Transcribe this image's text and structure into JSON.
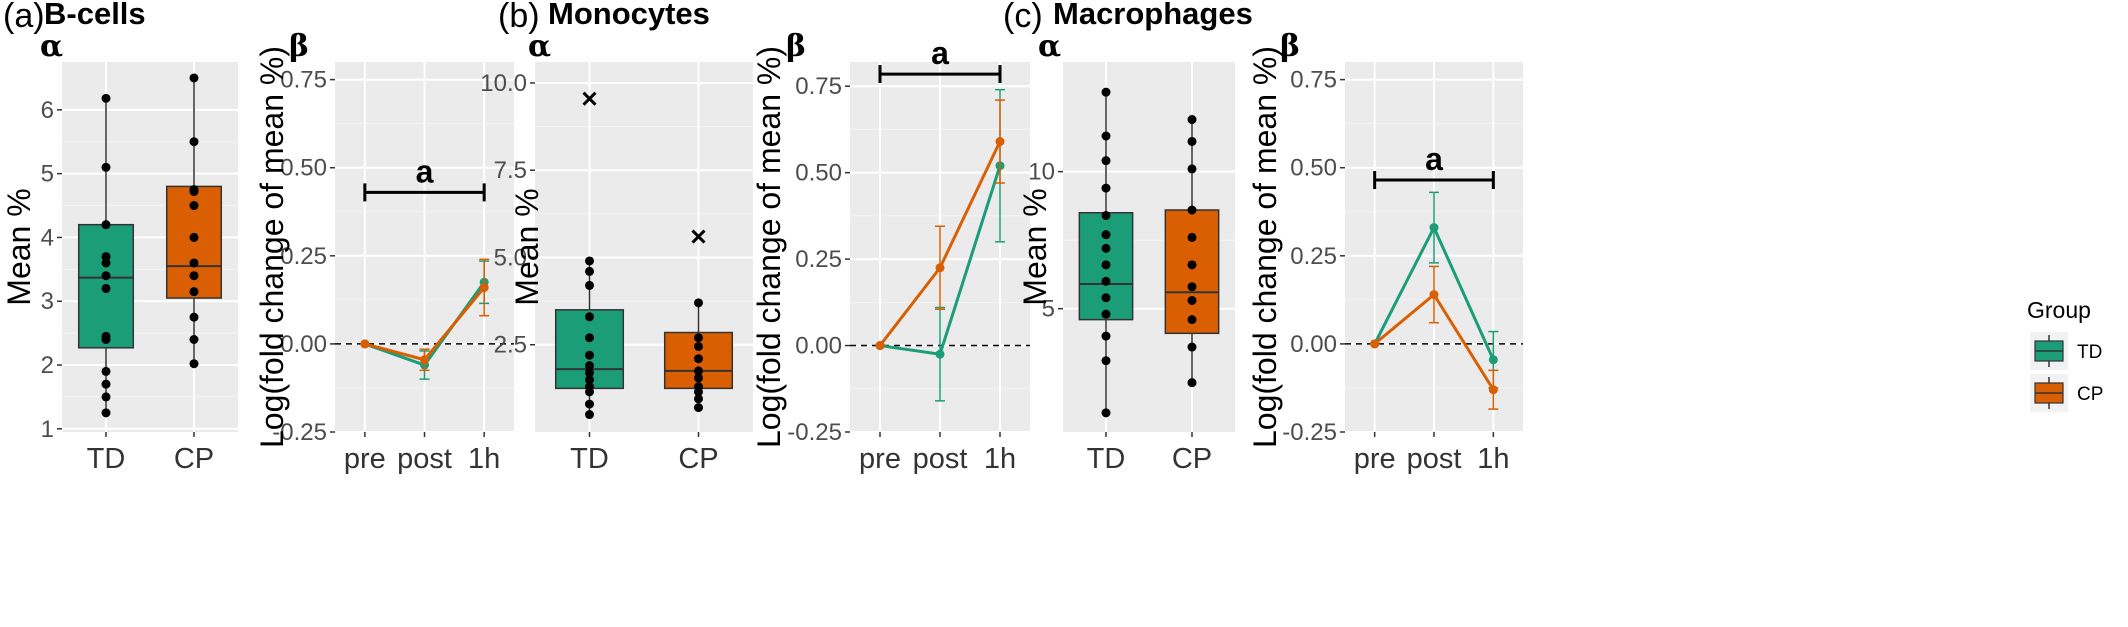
{
  "chart_data": [
    {
      "panel": "(a)",
      "title": "B-cells",
      "sub": "α",
      "type": "box",
      "ylabel": "Mean %",
      "ylim": [
        0.95,
        6.75
      ],
      "yticks": [
        1,
        2,
        3,
        4,
        5,
        6
      ],
      "categories": [
        "TD",
        "CP"
      ],
      "boxes": [
        {
          "name": "TD",
          "color": "#1b9e77",
          "q1": 2.27,
          "median": 3.37,
          "q3": 4.2,
          "whisker_low": 1.25,
          "whisker_high": 6.18,
          "points": [
            1.25,
            1.5,
            1.7,
            1.9,
            2.4,
            2.45,
            3.2,
            3.4,
            3.6,
            3.7,
            4.2,
            5.1,
            6.18
          ],
          "outliers": []
        },
        {
          "name": "CP",
          "color": "#d95f02",
          "q1": 3.05,
          "median": 3.55,
          "q3": 4.8,
          "whisker_low": 2.02,
          "whisker_high": 6.5,
          "points": [
            2.02,
            2.4,
            2.75,
            3.15,
            3.4,
            3.6,
            4.0,
            4.5,
            4.72,
            4.75,
            5.5,
            6.5
          ],
          "outliers": []
        }
      ]
    },
    {
      "panel": "",
      "title": "",
      "sub": "β",
      "type": "line",
      "ylabel": "Log(fold change of mean %)",
      "ylim": [
        -0.25,
        0.8
      ],
      "yticks": [
        -0.25,
        0.0,
        0.25,
        0.5,
        0.75
      ],
      "categories": [
        "pre",
        "post",
        "1h"
      ],
      "series": [
        {
          "name": "TD",
          "color": "#1b9e77",
          "values": [
            0.0,
            -0.06,
            0.175
          ],
          "err": [
            0,
            0.04,
            0.06
          ]
        },
        {
          "name": "CP",
          "color": "#d95f02",
          "values": [
            0.0,
            -0.045,
            0.16
          ],
          "err": [
            0,
            0.03,
            0.08
          ]
        }
      ],
      "significance": {
        "label": "a",
        "from": 0,
        "to": 2,
        "y": 0.43
      }
    },
    {
      "panel": "(b)",
      "title": "Monocytes",
      "sub": "α",
      "type": "box",
      "ylabel": "Mean %",
      "ylim": [
        0.0,
        10.6
      ],
      "yticks": [
        2.5,
        5.0,
        7.5,
        10.0
      ],
      "categories": [
        "TD",
        "CP"
      ],
      "boxes": [
        {
          "name": "TD",
          "color": "#1b9e77",
          "q1": 1.25,
          "median": 1.8,
          "q3": 3.5,
          "whisker_low": 0.5,
          "whisker_high": 4.9,
          "points": [
            0.5,
            0.8,
            1.15,
            1.3,
            1.5,
            1.7,
            1.9,
            2.2,
            2.7,
            3.3,
            4.2,
            4.6,
            4.9,
            9.55
          ],
          "outliers": [
            9.55
          ]
        },
        {
          "name": "CP",
          "color": "#d95f02",
          "q1": 1.25,
          "median": 1.75,
          "q3": 2.85,
          "whisker_low": 0.7,
          "whisker_high": 3.7,
          "points": [
            0.7,
            0.95,
            1.15,
            1.3,
            1.55,
            1.75,
            2.1,
            2.45,
            2.7,
            3.7,
            5.6
          ],
          "outliers": [
            5.6
          ]
        }
      ]
    },
    {
      "panel": "",
      "title": "",
      "sub": "β",
      "type": "line",
      "ylabel": "Log(fold change of mean %)",
      "ylim": [
        -0.25,
        0.82
      ],
      "yticks": [
        -0.25,
        0.0,
        0.25,
        0.5,
        0.75
      ],
      "categories": [
        "pre",
        "post",
        "1h"
      ],
      "series": [
        {
          "name": "TD",
          "color": "#1b9e77",
          "values": [
            0.0,
            -0.025,
            0.52
          ],
          "err": [
            0,
            0.135,
            0.22
          ]
        },
        {
          "name": "CP",
          "color": "#d95f02",
          "values": [
            0.0,
            0.225,
            0.59
          ],
          "err": [
            0,
            0.12,
            0.12
          ]
        }
      ],
      "significance": {
        "label": "a",
        "from": 0,
        "to": 2,
        "y": 0.785
      }
    },
    {
      "panel": "(c)",
      "title": "Macrophages",
      "sub": "α",
      "type": "box",
      "ylabel": "Mean %",
      "ylim": [
        0.5,
        14.0
      ],
      "yticks": [
        5,
        10
      ],
      "categories": [
        "TD",
        "CP"
      ],
      "boxes": [
        {
          "name": "TD",
          "color": "#1b9e77",
          "q1": 4.6,
          "median": 5.9,
          "q3": 8.5,
          "whisker_low": 1.2,
          "whisker_high": 12.9,
          "points": [
            1.2,
            3.1,
            4.0,
            4.8,
            5.4,
            6.0,
            6.6,
            7.2,
            7.7,
            8.4,
            9.4,
            10.4,
            11.3,
            12.9
          ],
          "outliers": []
        },
        {
          "name": "CP",
          "color": "#d95f02",
          "q1": 4.1,
          "median": 5.6,
          "q3": 8.6,
          "whisker_low": 2.3,
          "whisker_high": 11.9,
          "points": [
            2.3,
            3.6,
            4.6,
            5.3,
            5.8,
            6.6,
            7.6,
            8.6,
            10.1,
            11.1,
            11.9
          ],
          "outliers": []
        }
      ]
    },
    {
      "panel": "",
      "title": "",
      "sub": "β",
      "type": "line",
      "ylabel": "Log(fold change of mean %)",
      "ylim": [
        -0.25,
        0.8
      ],
      "yticks": [
        -0.25,
        0.0,
        0.25,
        0.5,
        0.75
      ],
      "categories": [
        "pre",
        "post",
        "1h"
      ],
      "series": [
        {
          "name": "TD",
          "color": "#1b9e77",
          "values": [
            0.0,
            0.33,
            -0.045
          ],
          "err": [
            0,
            0.1,
            0.08
          ]
        },
        {
          "name": "CP",
          "color": "#d95f02",
          "values": [
            0.0,
            0.14,
            -0.13
          ],
          "err": [
            0,
            0.08,
            0.055
          ]
        }
      ],
      "significance": {
        "label": "a",
        "from": 0,
        "to": 2,
        "y": 0.465
      }
    }
  ],
  "legend": {
    "title": "Group",
    "entries": [
      {
        "name": "TD",
        "color": "#1b9e77"
      },
      {
        "name": "CP",
        "color": "#d95f02"
      }
    ]
  }
}
